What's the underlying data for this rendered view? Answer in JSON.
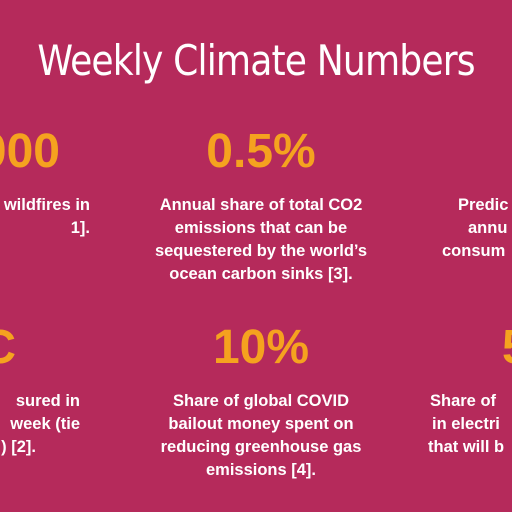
{
  "title": "Weekly Climate Numbers",
  "accent_color": "#f5a21f",
  "background_color": "#b52a5b",
  "stats": {
    "top_left": {
      "value": "000",
      "lines": [
        "wildfires in",
        "1]."
      ]
    },
    "top_mid": {
      "value": "0.5%",
      "lines": [
        "Annual share of total CO2",
        "emissions that can be",
        "sequestered by the world’s",
        "ocean carbon sinks [3]."
      ]
    },
    "top_right": {
      "value": "",
      "lines": [
        "Predic",
        "annu",
        "consum"
      ]
    },
    "bot_left": {
      "value": "C",
      "lines": [
        "sured in",
        "week (tie",
        ") [2]."
      ]
    },
    "bot_mid": {
      "value": "10%",
      "lines": [
        "Share of global COVID",
        "bailout money spent on",
        "reducing greenhouse gas",
        "emissions [4]."
      ]
    },
    "bot_right": {
      "value": "5",
      "lines": [
        "Share of",
        "in electri",
        "that will b"
      ]
    }
  }
}
